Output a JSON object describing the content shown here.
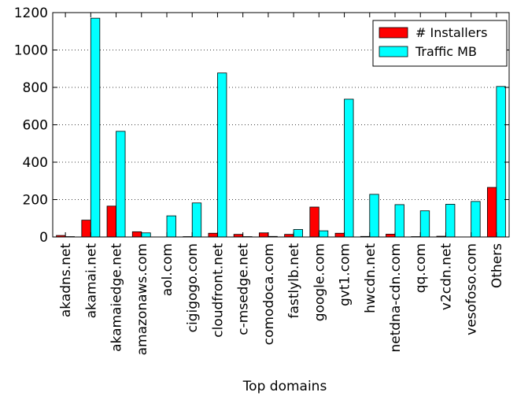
{
  "chart_data": {
    "type": "bar",
    "title": "",
    "xlabel": "Top domains",
    "ylabel": "",
    "ylim": [
      0,
      1200
    ],
    "yticks": [
      0,
      200,
      400,
      600,
      800,
      1000,
      1200
    ],
    "grid": "horizontal dotted",
    "legend_position": "top-right",
    "categories": [
      "akadns.net",
      "akamai.net",
      "akamaiedge.net",
      "amazonaws.com",
      "aol.com",
      "cigigogo.com",
      "cloudfront.net",
      "c-msedge.net",
      "comodoca.com",
      "fastlylb.net",
      "google.com",
      "gvt1.com",
      "hwcdn.net",
      "netdna-cdn.com",
      "qq.com",
      "v2cdn.net",
      "vesofoso.com",
      "Others"
    ],
    "series": [
      {
        "name": "# Installers",
        "color": "#ff0000",
        "values": [
          8,
          90,
          165,
          28,
          0,
          2,
          20,
          14,
          22,
          14,
          160,
          20,
          3,
          15,
          2,
          4,
          0,
          265
        ]
      },
      {
        "name": "Traffic MB",
        "color": "#00ffff",
        "values": [
          2,
          1170,
          565,
          22,
          113,
          182,
          877,
          2,
          3,
          40,
          33,
          737,
          228,
          173,
          140,
          175,
          190,
          805
        ]
      }
    ]
  }
}
